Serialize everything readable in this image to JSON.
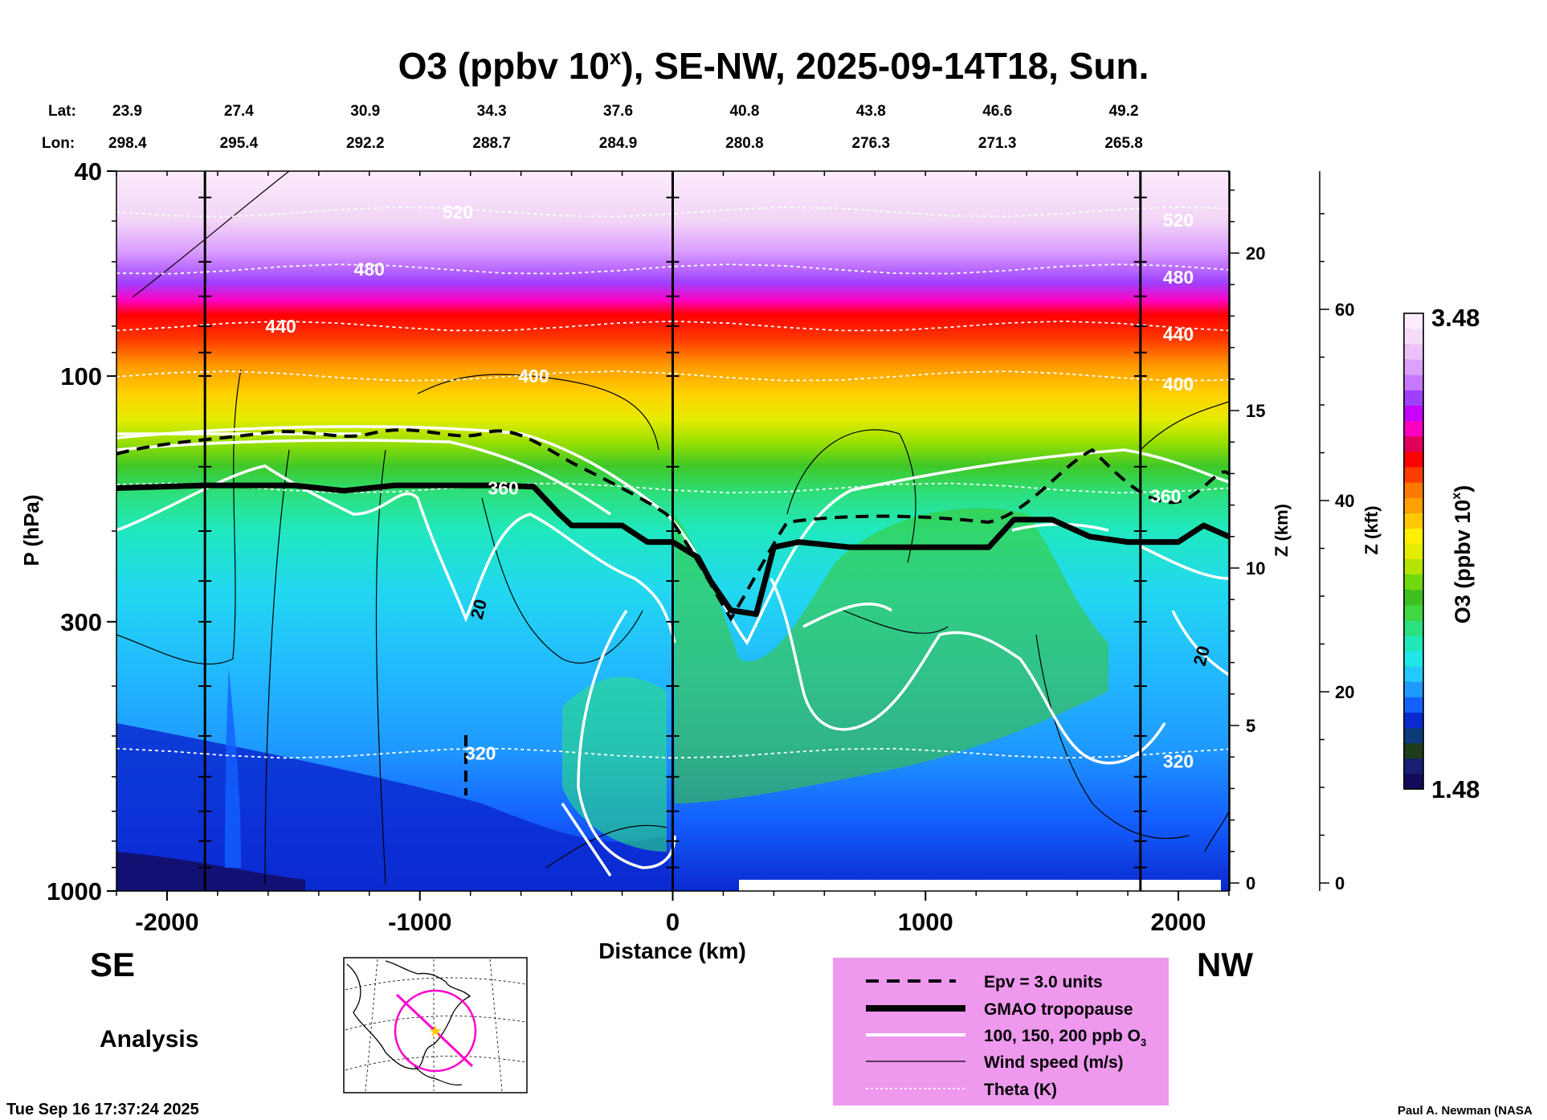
{
  "chart_data": {
    "type": "heatmap",
    "title_main": "O3 (ppbv 10",
    "title_sup": "x",
    "title_rest": "), SE-NW, 2025-09-14T18, Sun.",
    "xlabel": "Distance (km)",
    "ylabel": "P (hPa)",
    "xlim": [
      -2200,
      2200
    ],
    "ylim": [
      1000,
      40
    ],
    "y_scale": "log",
    "x_ticks": [
      -2000,
      -1000,
      0,
      1000,
      2000
    ],
    "y_ticks": [
      1000,
      300,
      100,
      40
    ],
    "z_km_label": "Z (km)",
    "z_km_ticks": [
      0,
      5,
      10,
      15,
      20
    ],
    "z_kft_label": "Z (kft)",
    "z_kft_ticks": [
      0,
      20,
      40,
      60
    ],
    "lat_label": "Lat:",
    "lon_label": "Lon:",
    "lat_values": [
      "23.9",
      "27.4",
      "30.9",
      "34.3",
      "37.6",
      "40.8",
      "43.8",
      "46.6",
      "49.2"
    ],
    "lon_values": [
      "298.4",
      "295.4",
      "292.2",
      "288.7",
      "284.9",
      "280.8",
      "276.3",
      "271.3",
      "265.8"
    ],
    "lat_lon_x": [
      -2200,
      -1700,
      -1200,
      -700,
      -200,
      300,
      800,
      1300,
      1800
    ],
    "vertical_lines_x": [
      -1850,
      0,
      1850
    ],
    "colorbar_label_main": "O3 (ppbv 10",
    "colorbar_label_sup": "x",
    "colorbar_label_rest": ")",
    "colorbar_min": "1.48",
    "colorbar_max": "3.48",
    "colormap": [
      "#140a5a",
      "#1a1f73",
      "#1f3d1a",
      "#0a3a7a",
      "#0a2ad0",
      "#1460ff",
      "#1f9aff",
      "#22c8ff",
      "#20e6e6",
      "#20e8b8",
      "#2ce080",
      "#40d840",
      "#3ec020",
      "#70d810",
      "#b4e400",
      "#e4ec00",
      "#fff000",
      "#ffc800",
      "#ffa000",
      "#ff7800",
      "#ff3c00",
      "#ff0000",
      "#e0005a",
      "#ff00c0",
      "#c800ff",
      "#a040ff",
      "#c878ff",
      "#dca0ff",
      "#ecc0f8",
      "#f6dcf8",
      "#fcecfc"
    ],
    "tropopause_hpa": [
      [
        -2200,
        165
      ],
      [
        -1850,
        163
      ],
      [
        -1500,
        163
      ],
      [
        -1300,
        167
      ],
      [
        -1100,
        163
      ],
      [
        -700,
        163
      ],
      [
        -550,
        164
      ],
      [
        -450,
        185
      ],
      [
        -400,
        195
      ],
      [
        -200,
        195
      ],
      [
        -100,
        210
      ],
      [
        0,
        210
      ],
      [
        100,
        225
      ],
      [
        150,
        250
      ],
      [
        230,
        285
      ],
      [
        330,
        290
      ],
      [
        400,
        215
      ],
      [
        500,
        210
      ],
      [
        700,
        215
      ],
      [
        1250,
        215
      ],
      [
        1350,
        190
      ],
      [
        1500,
        190
      ],
      [
        1650,
        205
      ],
      [
        1800,
        210
      ],
      [
        2000,
        210
      ],
      [
        2100,
        195
      ],
      [
        2200,
        205
      ]
    ],
    "ozone_contour_labels": [
      "20",
      "20"
    ],
    "theta_labels": [
      "520",
      "480",
      "440",
      "400",
      "360",
      "320"
    ],
    "theta_levels": [
      {
        "label": "520",
        "hpa": 48
      },
      {
        "label": "480",
        "hpa": 62
      },
      {
        "label": "440",
        "hpa": 80
      },
      {
        "label": "400",
        "hpa": 100
      },
      {
        "label": "360",
        "hpa": 165
      },
      {
        "label": "320",
        "hpa": 540
      }
    ],
    "theta_label_x": [
      -850,
      -1200,
      -1550,
      -550,
      -670,
      -760,
      2000,
      2000,
      2000,
      2000,
      1950,
      2000
    ],
    "direction_left": "SE",
    "direction_right": "NW",
    "panel_label": "Analysis",
    "timestamp": "Tue Sep 16 17:37:24 2025",
    "credit": "Paul A. Newman (NASA",
    "legend": [
      {
        "label": "Epv = 3.0 units",
        "style": "dashed-black"
      },
      {
        "label": "GMAO tropopause",
        "style": "thick-black"
      },
      {
        "label_main": "100, 150, 200 ppb O",
        "label_sub": "3",
        "style": "white"
      },
      {
        "label": "Wind speed (m/s)",
        "style": "thin-black"
      },
      {
        "label": "Theta (K)",
        "style": "dotted-white"
      }
    ],
    "legend_bg": "#ee99ee"
  }
}
